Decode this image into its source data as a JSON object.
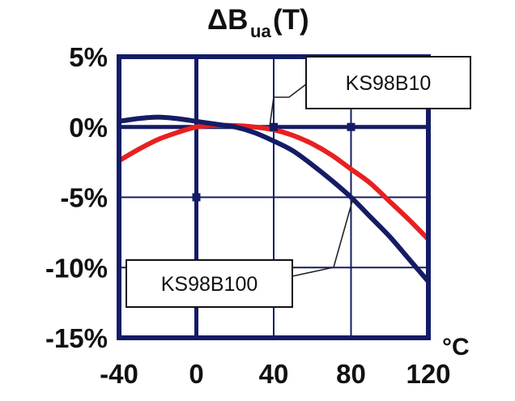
{
  "chart_data": {
    "type": "line",
    "title_main": "ΔB",
    "title_sub": "ua",
    "title_tail": "(T)",
    "x_unit": "°C",
    "x": [
      -40,
      -30,
      -20,
      -10,
      0,
      10,
      20,
      30,
      40,
      50,
      60,
      70,
      80,
      90,
      100,
      110,
      120
    ],
    "xlim": [
      -40,
      120
    ],
    "ylim": [
      -15,
      5
    ],
    "x_ticks": [
      -40,
      0,
      40,
      80,
      120
    ],
    "x_tick_labels": [
      "-40",
      "0",
      "40",
      "80",
      "120"
    ],
    "y_ticks": [
      5,
      0,
      -5,
      -10,
      -15
    ],
    "y_tick_labels": [
      "5%",
      "0%",
      "-5%",
      "-10%",
      "-15%"
    ],
    "grid": true,
    "series": [
      {
        "name": "KS98B10",
        "color": "#e82020",
        "values": [
          -2.4,
          -1.6,
          -0.9,
          -0.4,
          0.0,
          0.1,
          0.1,
          0.0,
          -0.2,
          -0.6,
          -1.2,
          -2.0,
          -3.0,
          -4.0,
          -5.3,
          -6.6,
          -8.0
        ]
      },
      {
        "name": "KS98B100",
        "color": "#141c66",
        "values": [
          0.4,
          0.6,
          0.7,
          0.6,
          0.4,
          0.2,
          0.0,
          -0.4,
          -1.0,
          -1.7,
          -2.7,
          -3.8,
          -5.0,
          -6.4,
          -7.8,
          -9.4,
          -11.0
        ]
      }
    ],
    "callouts": [
      {
        "label": "KS98B10",
        "target_x": 38,
        "target_y": 0.1
      },
      {
        "label": "KS98B100",
        "target_x": 81,
        "target_y": -5.1
      }
    ],
    "marks": [
      {
        "x": 0,
        "y": -5
      },
      {
        "x": 40,
        "y": 0
      },
      {
        "x": 80,
        "y": 0
      }
    ]
  }
}
